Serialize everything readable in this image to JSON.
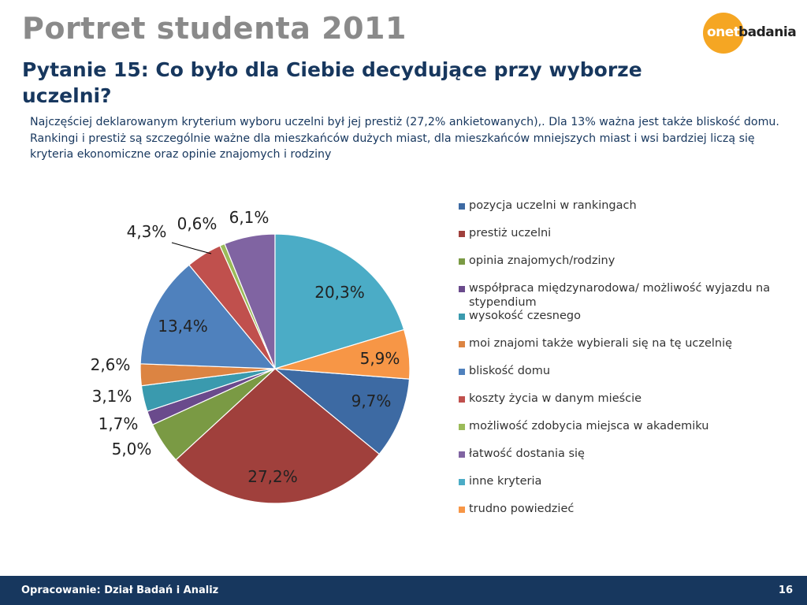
{
  "header": {
    "title": "Portret studenta 2011",
    "logo_onet": "onet",
    "logo_badania": "badania"
  },
  "question": "Pytanie 15: Co było dla Ciebie decydujące przy wyborze uczelni?",
  "description": "Najczęściej deklarowanym kryterium wyboru uczelni był jej prestiż (27,2% ankietowanych),. Dla 13% ważna jest także bliskość domu. Rankingi i prestiż są szczególnie ważne dla mieszkańców dużych miast, dla mieszkańców mniejszych miast i wsi bardziej liczą się kryteria ekonomiczne oraz opinie znajomych i rodziny",
  "footer": {
    "left": "Opracowanie: Dział Badań i Analiz",
    "page_number": "16"
  },
  "colors": {
    "title": "#8a8a8a",
    "accent": "#17375e",
    "logo_orange": "#f5a623"
  },
  "chart_data": {
    "type": "pie",
    "title": "",
    "legend_position": "right",
    "slices": [
      {
        "label": "pozycja uczelni w rankingach",
        "value": 9.7,
        "display": "9,7%",
        "color": "#3d6aa3"
      },
      {
        "label": "prestiż uczelni",
        "value": 27.2,
        "display": "27,2%",
        "color": "#a0403c"
      },
      {
        "label": "opinia znajomych/rodziny",
        "value": 5.0,
        "display": "5,0%",
        "color": "#7a9a44"
      },
      {
        "label": "współpraca międzynarodowa/ możliwość wyjazdu na stypendium",
        "value": 1.7,
        "display": "1,7%",
        "color": "#6a4a8c"
      },
      {
        "label": "wysokość czesnego",
        "value": 3.1,
        "display": "3,1%",
        "color": "#3a9aae"
      },
      {
        "label": "moi znajomi także wybierali się na tę uczelnię",
        "value": 2.6,
        "display": "2,6%",
        "color": "#dc8442"
      },
      {
        "label": "bliskość domu",
        "value": 13.4,
        "display": "13,4%",
        "color": "#4f81bd"
      },
      {
        "label": "koszty życia w danym mieście",
        "value": 4.3,
        "display": "4,3%",
        "color": "#c0504d"
      },
      {
        "label": "możliwość zdobycia miejsca w akademiku",
        "value": 0.6,
        "display": "0,6%",
        "color": "#9bbb59"
      },
      {
        "label": "łatwość dostania się",
        "value": 6.1,
        "display": "6,1%",
        "color": "#8064a2"
      },
      {
        "label": "inne kryteria",
        "value": 20.3,
        "display": "20,3%",
        "color": "#4bacc6"
      },
      {
        "label": "trudno powiedzieć",
        "value": 5.9,
        "display": "5,9%",
        "color": "#f79646"
      }
    ]
  }
}
